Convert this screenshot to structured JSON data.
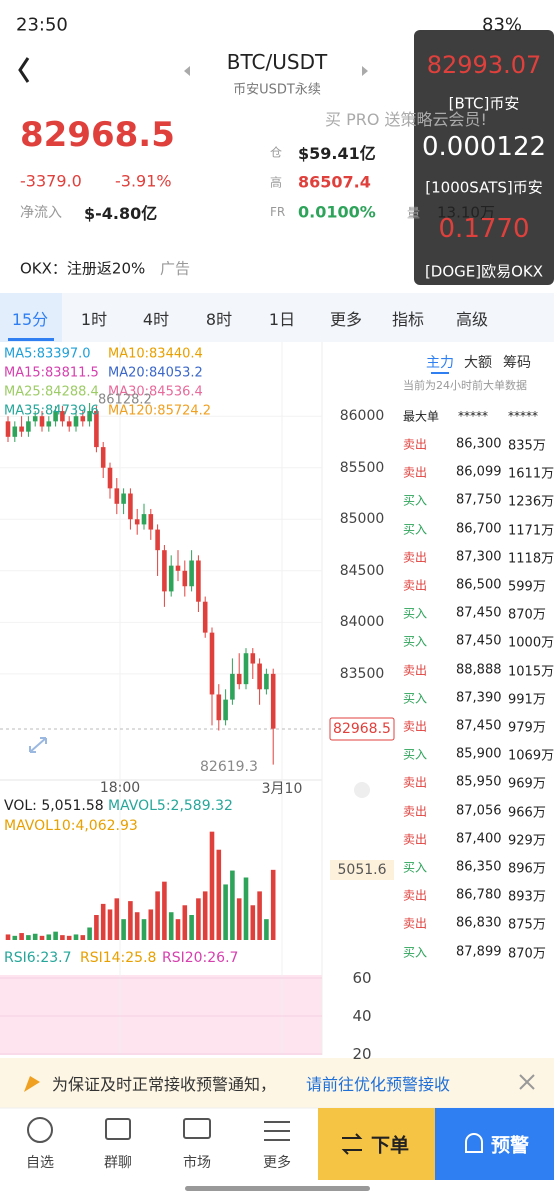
{
  "status": {
    "time": "23:50",
    "battery": "83%"
  },
  "header": {
    "symbol": "BTC/USDT",
    "subtitle": "币安USDT永续",
    "promo": "买 PRO 送策略云会员!"
  },
  "overlay": [
    {
      "price": "82993.07",
      "source": "[BTC]币安"
    },
    {
      "price": "0.000122",
      "source": "[1000SATS]币安"
    },
    {
      "price": "0.1770",
      "source": "[DOGE]欧易OKX"
    }
  ],
  "ticker": {
    "price": "82968.5",
    "change": "-3379.0",
    "change_pct": "-3.91%",
    "net_inflow_label": "净流入",
    "net_inflow": "$-4.80亿",
    "stats": [
      {
        "label": "仓",
        "value": "$59.41亿"
      },
      {
        "label": "高",
        "value": "86507.4"
      },
      {
        "label": "FR",
        "value": "0.0100%"
      }
    ],
    "volume_label": "量",
    "volume": "13.10万"
  },
  "ad": {
    "text": "OKX：注册返20%",
    "tag": "广告"
  },
  "tabs": [
    "15分",
    "1时",
    "4时",
    "8时",
    "1日",
    "更多",
    "指标",
    "高级"
  ],
  "chart": {
    "ma_labels": [
      "MA5:83397.0",
      "MA10:83440.4",
      "MA15:83811.5",
      "MA20:84053.2",
      "MA25:84288.4",
      "MA30:84536.4",
      "MA35:84739.6",
      "MA120:85724.2"
    ],
    "ylim": [
      82470,
      86720
    ],
    "yticks": [
      86000,
      85500,
      85000,
      84500,
      84000,
      83500
    ],
    "candles": [
      [
        85950,
        85800,
        86000,
        85750
      ],
      [
        85800,
        85900,
        85950,
        85750
      ],
      [
        85900,
        85850,
        86000,
        85800
      ],
      [
        85850,
        85950,
        86000,
        85800
      ],
      [
        85950,
        86000,
        86050,
        85900
      ],
      [
        86000,
        85900,
        86050,
        85850
      ],
      [
        85900,
        85950,
        86000,
        85850
      ],
      [
        85950,
        86050,
        86100,
        85900
      ],
      [
        86050,
        85950,
        86100,
        85900
      ],
      [
        85950,
        85900,
        86000,
        85850
      ],
      [
        85900,
        86000,
        86050,
        85850
      ],
      [
        86000,
        85950,
        86050,
        85900
      ],
      [
        85950,
        86050,
        86128.2,
        85900
      ],
      [
        86050,
        85700,
        86100,
        85650
      ],
      [
        85700,
        85500,
        85750,
        85400
      ],
      [
        85500,
        85300,
        85550,
        85200
      ],
      [
        85300,
        85150,
        85400,
        85050
      ],
      [
        85150,
        85250,
        85300,
        85050
      ],
      [
        85250,
        85000,
        85300,
        84900
      ],
      [
        85000,
        84950,
        85100,
        84850
      ],
      [
        84950,
        85050,
        85150,
        84900
      ],
      [
        85050,
        84900,
        85100,
        84800
      ],
      [
        84900,
        84700,
        84950,
        84450
      ],
      [
        84700,
        84300,
        84750,
        84150
      ],
      [
        84300,
        84550,
        84650,
        84250
      ],
      [
        84550,
        84500,
        84700,
        84400
      ],
      [
        84500,
        84350,
        84600,
        84250
      ],
      [
        84350,
        84600,
        84700,
        84300
      ],
      [
        84600,
        84200,
        84650,
        84100
      ],
      [
        84200,
        83900,
        84250,
        83850
      ],
      [
        83900,
        83300,
        83950,
        83000
      ],
      [
        83300,
        83050,
        83400,
        82950
      ],
      [
        83050,
        83250,
        83350,
        83000
      ],
      [
        83250,
        83500,
        83650,
        83200
      ],
      [
        83500,
        83400,
        83700,
        83350
      ],
      [
        83400,
        83700,
        83750,
        83350
      ],
      [
        83700,
        83600,
        83750,
        83450
      ],
      [
        83600,
        83350,
        83650,
        83200
      ],
      [
        83350,
        83500,
        83550,
        83300
      ],
      [
        83500,
        82968.5,
        83550,
        82619.3
      ]
    ],
    "last_price": "82968.5",
    "high_label": "86128.2",
    "low_label": "82619.3",
    "time_labels": [
      "18:00",
      "3月10"
    ],
    "vol_labels": [
      "VOL: 5,051.58",
      "MAVOL5:2,589.32",
      "MAVOL10:4,062.93"
    ],
    "vol_ylim": [
      0,
      9000
    ],
    "vol_mark": "5051.6",
    "volumes": [
      400,
      300,
      500,
      350,
      450,
      300,
      400,
      600,
      350,
      300,
      400,
      350,
      900,
      1800,
      2600,
      2200,
      3000,
      1500,
      2800,
      2000,
      1500,
      2200,
      3500,
      4200,
      2000,
      1500,
      2500,
      1800,
      3000,
      3500,
      7800,
      6500,
      4000,
      5000,
      3000,
      4500,
      2500,
      3500,
      1500,
      5051.58
    ],
    "rsi_labels": [
      "RSI6:23.7",
      "RSI14:25.8",
      "RSI20:26.7"
    ],
    "rsi_ylim": [
      19.5,
      61.6
    ],
    "rsi_ticks": [
      60,
      40,
      20
    ]
  },
  "orders": {
    "tabs": [
      "主力",
      "大额",
      "筹码"
    ],
    "note": "当前为24小时前大单数据",
    "header": [
      "最大单",
      "*****",
      "*****"
    ],
    "rows": [
      [
        "卖出",
        "86,300",
        "835万"
      ],
      [
        "卖出",
        "86,099",
        "1611万"
      ],
      [
        "买入",
        "87,750",
        "1236万"
      ],
      [
        "买入",
        "86,700",
        "1171万"
      ],
      [
        "卖出",
        "87,300",
        "1118万"
      ],
      [
        "卖出",
        "86,500",
        "599万"
      ],
      [
        "买入",
        "87,450",
        "870万"
      ],
      [
        "买入",
        "87,450",
        "1000万"
      ],
      [
        "卖出",
        "88,888",
        "1015万"
      ],
      [
        "买入",
        "87,390",
        "991万"
      ],
      [
        "卖出",
        "87,450",
        "979万"
      ],
      [
        "买入",
        "85,900",
        "1069万"
      ],
      [
        "卖出",
        "85,950",
        "969万"
      ],
      [
        "卖出",
        "87,056",
        "966万"
      ],
      [
        "卖出",
        "87,400",
        "929万"
      ],
      [
        "买入",
        "86,350",
        "896万"
      ],
      [
        "卖出",
        "86,780",
        "893万"
      ],
      [
        "卖出",
        "86,830",
        "875万"
      ],
      [
        "买入",
        "87,899",
        "870万"
      ]
    ]
  },
  "notice": {
    "text": "为保证及时正常接收预警通知，",
    "link": "请前往优化预警接收"
  },
  "nav": [
    "自选",
    "群聊",
    "市场",
    "更多"
  ],
  "buttons": [
    "下单",
    "预警"
  ]
}
